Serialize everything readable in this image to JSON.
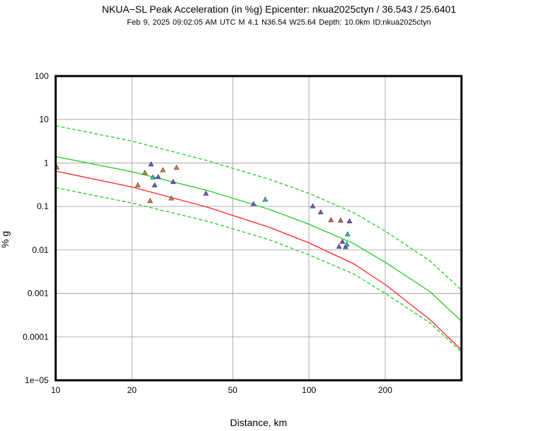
{
  "header": {
    "title": "NKUA−SL Peak Acceleration (in %g) Epicenter: nkua2025ctyn / 36.543 / 25.6401",
    "subtitle": "Feb  9, 2025 09:02:05 AM UTC   M 4.1   N36.54 W25.64   Depth: 10.0km   ID:nkua2025ctyn"
  },
  "chart_data": {
    "type": "scatter",
    "xlabel": "Distance, km",
    "ylabel": "% g",
    "xscale": "log",
    "yscale": "log",
    "xlim": [
      10,
      400
    ],
    "ylim": [
      1e-05,
      100
    ],
    "xticks": [
      10,
      20,
      50,
      100,
      200
    ],
    "xtick_labels": [
      "10",
      "20",
      "50",
      "100",
      "200"
    ],
    "yticks": [
      1e-05,
      0.0001,
      0.001,
      0.01,
      0.1,
      1,
      10,
      100
    ],
    "ytick_labels": [
      "1e−05",
      "0.0001",
      "0.001",
      "0.01",
      "0.1",
      "1",
      "10",
      "100"
    ],
    "grid": true,
    "curves": [
      {
        "style": "solid",
        "color": "#22cc22",
        "x": [
          10,
          20,
          40,
          70,
          100,
          150,
          200,
          300,
          400
        ],
        "y": [
          1.4,
          0.63,
          0.23,
          0.085,
          0.039,
          0.014,
          0.0052,
          0.0011,
          0.00023
        ]
      },
      {
        "style": "dashed",
        "color": "#22cc22",
        "x": [
          10,
          20,
          40,
          70,
          100,
          150,
          200,
          300,
          400
        ],
        "y": [
          7.2,
          3.2,
          1.12,
          0.42,
          0.2,
          0.072,
          0.027,
          0.0056,
          0.0012
        ]
      },
      {
        "style": "dashed",
        "color": "#22cc22",
        "x": [
          10,
          20,
          40,
          70,
          100,
          150,
          200,
          300,
          400
        ],
        "y": [
          0.27,
          0.12,
          0.045,
          0.017,
          0.0077,
          0.0028,
          0.001,
          0.00021,
          4.5e-05
        ]
      },
      {
        "style": "solid",
        "color": "#ff2222",
        "x": [
          10,
          20,
          40,
          70,
          100,
          150,
          200,
          300,
          400
        ],
        "y": [
          0.65,
          0.28,
          0.095,
          0.033,
          0.0145,
          0.0048,
          0.0016,
          0.00025,
          5e-05
        ]
      }
    ],
    "points": [
      {
        "x": 10.1,
        "y": 0.8,
        "color": "#e07b39"
      },
      {
        "x": 21.1,
        "y": 0.31,
        "color": "#e07b39"
      },
      {
        "x": 22.5,
        "y": 0.6,
        "color": "#e07b39"
      },
      {
        "x": 23.8,
        "y": 0.94,
        "color": "#6a5acd"
      },
      {
        "x": 23.6,
        "y": 0.135,
        "color": "#e07b39"
      },
      {
        "x": 24.2,
        "y": 0.47,
        "color": "#1cc6c6"
      },
      {
        "x": 24.6,
        "y": 0.31,
        "color": "#6a5acd"
      },
      {
        "x": 25.4,
        "y": 0.48,
        "color": "#6a5acd"
      },
      {
        "x": 26.5,
        "y": 0.69,
        "color": "#e07b39"
      },
      {
        "x": 28.6,
        "y": 0.155,
        "color": "#e07b39"
      },
      {
        "x": 29.1,
        "y": 0.37,
        "color": "#6a5acd"
      },
      {
        "x": 30.0,
        "y": 0.79,
        "color": "#e07b39"
      },
      {
        "x": 39.2,
        "y": 0.2,
        "color": "#6a5acd"
      },
      {
        "x": 60.4,
        "y": 0.115,
        "color": "#6a5acd"
      },
      {
        "x": 67.2,
        "y": 0.145,
        "color": "#1cc6c6"
      },
      {
        "x": 103.5,
        "y": 0.102,
        "color": "#6a5acd"
      },
      {
        "x": 111.2,
        "y": 0.074,
        "color": "#6a5acd"
      },
      {
        "x": 122.1,
        "y": 0.049,
        "color": "#e05a5a"
      },
      {
        "x": 133.3,
        "y": 0.048,
        "color": "#e05a5a"
      },
      {
        "x": 131.4,
        "y": 0.012,
        "color": "#6a5acd"
      },
      {
        "x": 135.5,
        "y": 0.0155,
        "color": "#6a5acd"
      },
      {
        "x": 139.5,
        "y": 0.0118,
        "color": "#6a5acd"
      },
      {
        "x": 141.0,
        "y": 0.0135,
        "color": "#1cc6c6"
      },
      {
        "x": 142.1,
        "y": 0.023,
        "color": "#1cc6c6"
      },
      {
        "x": 144.5,
        "y": 0.046,
        "color": "#6a5acd"
      }
    ]
  }
}
